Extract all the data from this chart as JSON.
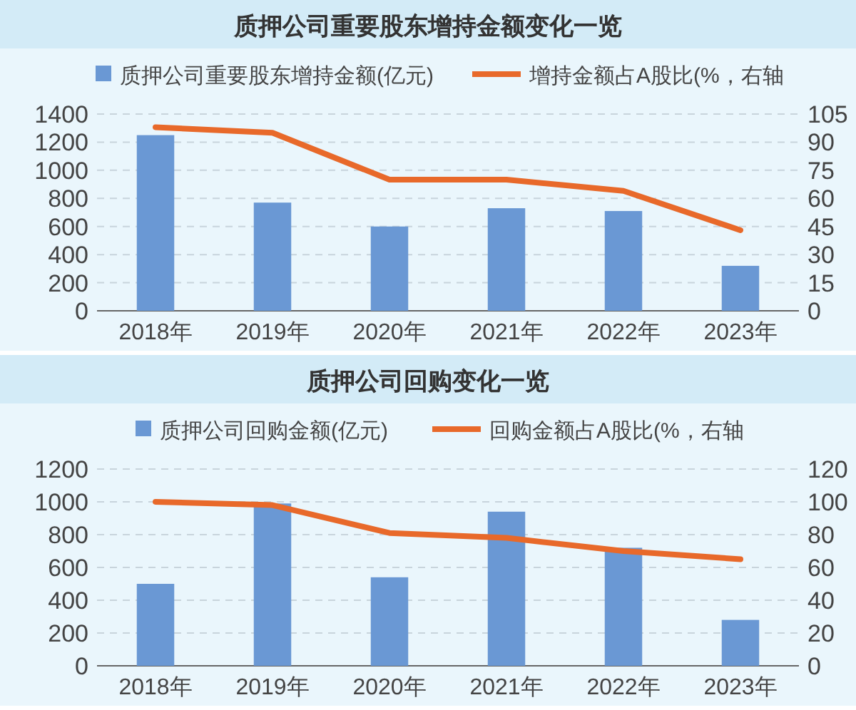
{
  "chart_data": [
    {
      "type": "bar",
      "title": "质押公司重要股东增持金额变化一览",
      "categories": [
        "2018年",
        "2019年",
        "2020年",
        "2021年",
        "2022年",
        "2023年"
      ],
      "series": [
        {
          "name": "质押公司重要股东增持金额(亿元)",
          "color": "#6a98d4",
          "values": [
            1250,
            770,
            600,
            730,
            710,
            320
          ]
        },
        {
          "name": "增持金额占A股比(%，右轴",
          "type": "line",
          "axis": "y2",
          "color": "#e8692a",
          "values": [
            98,
            95,
            70,
            70,
            64,
            43
          ]
        }
      ],
      "ylim": [
        0,
        1400
      ],
      "yticks": [
        0,
        200,
        400,
        600,
        800,
        1000,
        1200,
        1400
      ],
      "y2lim": [
        0,
        105
      ],
      "y2ticks": [
        0,
        15,
        30,
        45,
        60,
        75,
        90,
        105
      ],
      "grid": "y",
      "legend": "top"
    },
    {
      "type": "bar",
      "title": "质押公司回购变化一览",
      "categories": [
        "2018年",
        "2019年",
        "2020年",
        "2021年",
        "2022年",
        "2023年"
      ],
      "series": [
        {
          "name": "质押公司回购金额(亿元)",
          "color": "#6a98d4",
          "values": [
            500,
            990,
            540,
            940,
            720,
            280
          ]
        },
        {
          "name": "回购金额占A股比(%，右轴",
          "type": "line",
          "axis": "y2",
          "color": "#e8692a",
          "values": [
            100,
            98,
            81,
            78,
            70,
            65
          ]
        }
      ],
      "ylim": [
        0,
        1200
      ],
      "yticks": [
        0,
        200,
        400,
        600,
        800,
        1000,
        1200
      ],
      "y2lim": [
        0,
        120
      ],
      "y2ticks": [
        0,
        20,
        40,
        60,
        80,
        100,
        120
      ],
      "grid": "y",
      "legend": "top"
    }
  ]
}
